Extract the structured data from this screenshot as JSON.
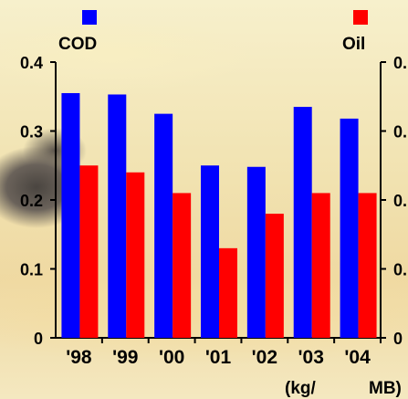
{
  "chart_data": {
    "type": "bar",
    "categories": [
      "'98",
      "'99",
      "'00",
      "'01",
      "'02",
      "'03",
      "'04"
    ],
    "series": [
      {
        "name": "COD",
        "color": "#0000ff",
        "values": [
          0.355,
          0.353,
          0.325,
          0.25,
          0.248,
          0.335,
          0.318
        ]
      },
      {
        "name": "Oil",
        "color": "#ff0000",
        "values": [
          0.25,
          0.24,
          0.21,
          0.13,
          0.18,
          0.21,
          0.21
        ]
      }
    ],
    "ylim": [
      0,
      0.4
    ],
    "yticks_left": [
      "0",
      "0.1",
      "0.2",
      "0.3",
      "0.4"
    ],
    "yticks_right": [
      "0",
      "0.",
      "0.",
      "0.",
      "0."
    ],
    "unit_left": "(kg/",
    "unit_right": "MB)",
    "legend": {
      "left": "COD",
      "right": "Oil"
    },
    "grid": false
  }
}
